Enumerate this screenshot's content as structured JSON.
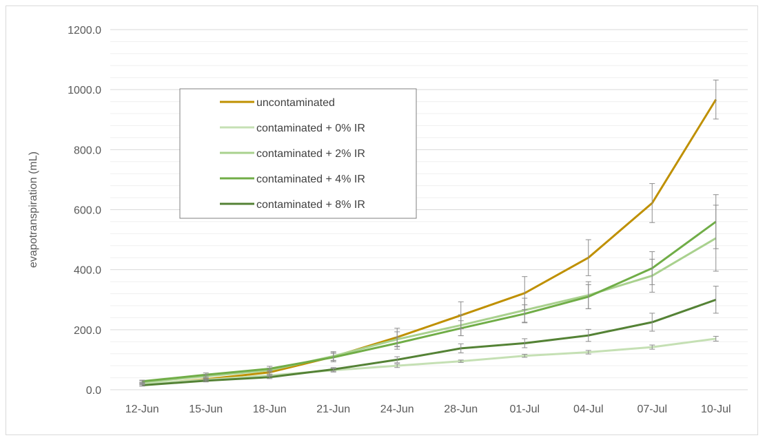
{
  "chart_data": {
    "type": "line",
    "title": "",
    "xlabel": "",
    "ylabel": "evapotranspiration (mL)",
    "categories": [
      "12-Jun",
      "15-Jun",
      "18-Jun",
      "21-Jun",
      "24-Jun",
      "28-Jun",
      "01-Jul",
      "04-Jul",
      "07-Jul",
      "10-Jul"
    ],
    "ylim": [
      0,
      1200
    ],
    "y_ticks": [
      "0.0",
      "200.0",
      "400.0",
      "600.0",
      "800.0",
      "1000.0",
      "1200.0"
    ],
    "grid": "horizontal major and minor",
    "legend_position": "upper-left inside plot",
    "series": [
      {
        "name": "uncontaminated",
        "color": "#bf9000",
        "values": [
          18,
          35,
          58,
          110,
          175,
          248,
          322,
          440,
          622,
          967
        ],
        "error": [
          5,
          5,
          7,
          12,
          30,
          45,
          55,
          60,
          65,
          65
        ]
      },
      {
        "name": "contaminated + 0% IR",
        "color": "#c5e0b4",
        "values": [
          20,
          33,
          48,
          65,
          80,
          95,
          113,
          125,
          142,
          170
        ],
        "error": [
          3,
          3,
          4,
          6,
          6,
          4,
          5,
          6,
          7,
          8
        ]
      },
      {
        "name": "contaminated + 2% IR",
        "color": "#a9d18e",
        "values": [
          25,
          45,
          65,
          112,
          168,
          215,
          265,
          315,
          380,
          505
        ],
        "error": [
          4,
          6,
          7,
          15,
          25,
          35,
          40,
          45,
          55,
          110
        ]
      },
      {
        "name": "contaminated + 4% IR",
        "color": "#70ad47",
        "values": [
          28,
          50,
          70,
          108,
          155,
          205,
          253,
          310,
          405,
          560
        ],
        "error": [
          4,
          6,
          8,
          15,
          20,
          25,
          30,
          40,
          55,
          90
        ]
      },
      {
        "name": "contaminated + 8% IR",
        "color": "#548235",
        "values": [
          15,
          30,
          42,
          68,
          100,
          138,
          155,
          181,
          225,
          300
        ],
        "error": [
          3,
          4,
          5,
          6,
          10,
          15,
          15,
          20,
          30,
          45
        ]
      }
    ]
  }
}
